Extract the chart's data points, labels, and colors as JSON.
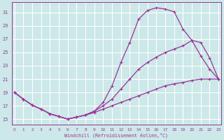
{
  "xlabel": "Windchill (Refroidissement éolien,°C)",
  "background_color": "#cce8e8",
  "grid_color": "#ffffff",
  "line_color": "#993399",
  "x_ticks": [
    0,
    1,
    2,
    3,
    4,
    5,
    6,
    7,
    8,
    9,
    10,
    11,
    12,
    13,
    14,
    15,
    16,
    17,
    18,
    19,
    20,
    21,
    22,
    23
  ],
  "y_ticks": [
    15,
    17,
    19,
    21,
    23,
    25,
    27,
    29,
    31
  ],
  "xlim": [
    -0.3,
    23.3
  ],
  "ylim": [
    14.2,
    32.5
  ],
  "line1_x": [
    0,
    1,
    2,
    3,
    4,
    5,
    6,
    7,
    8,
    9,
    10,
    11,
    12,
    13,
    14,
    15,
    16,
    17,
    18,
    19,
    20,
    21,
    22,
    23
  ],
  "line1_y": [
    19.0,
    18.0,
    17.1,
    16.5,
    15.8,
    15.4,
    15.0,
    15.3,
    15.6,
    16.2,
    17.5,
    20.0,
    23.5,
    26.5,
    30.0,
    31.3,
    31.7,
    31.5,
    31.1,
    28.5,
    26.8,
    24.5,
    22.5,
    21.0
  ],
  "line2_x": [
    0,
    1,
    2,
    3,
    4,
    5,
    6,
    7,
    8,
    9,
    10,
    11,
    12,
    13,
    14,
    15,
    16,
    17,
    18,
    19,
    20,
    21,
    22,
    23
  ],
  "line2_y": [
    19.0,
    18.0,
    17.1,
    16.5,
    15.8,
    15.4,
    15.0,
    15.3,
    15.6,
    16.0,
    16.5,
    17.0,
    17.5,
    18.0,
    18.5,
    19.0,
    19.5,
    20.0,
    20.3,
    20.5,
    20.8,
    21.0,
    21.0,
    21.0
  ],
  "line3_x": [
    0,
    1,
    2,
    3,
    4,
    5,
    6,
    7,
    8,
    9,
    10,
    11,
    12,
    13,
    14,
    15,
    16,
    17,
    18,
    19,
    20,
    21,
    22,
    23
  ],
  "line3_y": [
    19.0,
    18.0,
    17.1,
    16.5,
    15.8,
    15.4,
    15.0,
    15.3,
    15.6,
    16.2,
    17.0,
    18.0,
    19.5,
    21.0,
    22.5,
    23.5,
    24.3,
    25.0,
    25.5,
    26.0,
    26.8,
    26.5,
    24.2,
    21.0
  ]
}
